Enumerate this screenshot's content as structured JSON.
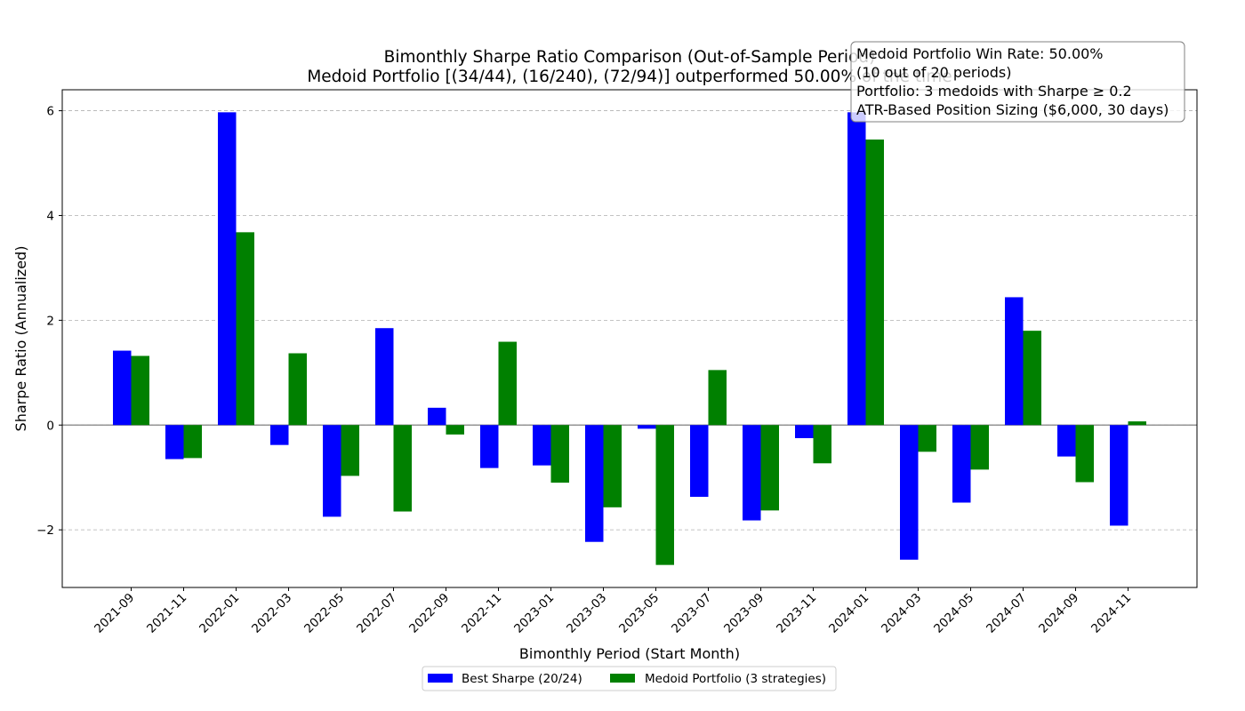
{
  "chart_data": {
    "type": "bar",
    "title_line1": "Bimonthly Sharpe Ratio Comparison (Out-of-Sample Period)",
    "title_line2": "Medoid Portfolio [(34/44), (16/240), (72/94)] outperformed 50.00% of the time",
    "xlabel": "Bimonthly Period (Start Month)",
    "ylabel": "Sharpe Ratio (Annualized)",
    "ylim": [
      -3.1,
      6.4
    ],
    "yticks": [
      -2,
      0,
      2,
      4,
      6
    ],
    "ytick_labels": [
      "−2",
      "0",
      "2",
      "4",
      "6"
    ],
    "grid": "horizontal dashed",
    "legend_position": "bottom-center",
    "categories": [
      "2021-09",
      "2021-11",
      "2022-01",
      "2022-03",
      "2022-05",
      "2022-07",
      "2022-09",
      "2022-11",
      "2023-01",
      "2023-03",
      "2023-05",
      "2023-07",
      "2023-09",
      "2023-11",
      "2024-01",
      "2024-03",
      "2024-05",
      "2024-07",
      "2024-09",
      "2024-11"
    ],
    "series": [
      {
        "name": "Best Sharpe (20/24)",
        "color": "#0000ff",
        "values": [
          1.42,
          -0.65,
          5.97,
          -0.38,
          -1.75,
          1.85,
          0.33,
          -0.82,
          -0.77,
          -2.23,
          -0.07,
          -1.37,
          -1.82,
          -0.25,
          5.97,
          -2.57,
          -1.48,
          2.44,
          -0.6,
          -1.92
        ]
      },
      {
        "name": "Medoid Portfolio (3 strategies)",
        "color": "#008000",
        "values": [
          1.32,
          -0.63,
          3.68,
          1.37,
          -0.97,
          -1.65,
          -0.18,
          1.59,
          -1.1,
          -1.57,
          -2.67,
          1.05,
          -1.63,
          -0.73,
          5.45,
          -0.51,
          -0.85,
          1.8,
          -1.09,
          0.07
        ]
      }
    ],
    "annotation": {
      "lines": [
        "Medoid Portfolio Win Rate: 50.00%",
        "(10 out of 20 periods)",
        "Portfolio: 3 medoids with Sharpe ≥ 0.2",
        "ATR-Based Position Sizing ($6,000, 30 days)"
      ]
    }
  }
}
